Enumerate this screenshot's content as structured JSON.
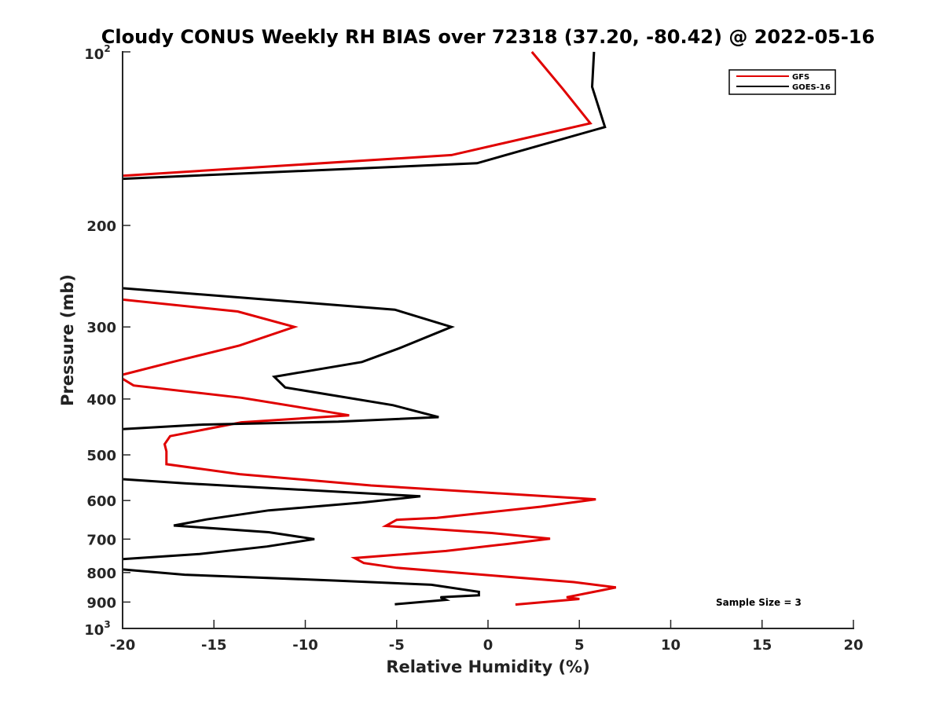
{
  "chart_data": {
    "type": "line",
    "title": "Cloudy CONUS Weekly RH BIAS over 72318 (37.20, -80.42) @ 2022-05-16",
    "xlabel": "Relative Humidity (%)",
    "ylabel": "Pressure (mb)",
    "xlim": [
      -20,
      20
    ],
    "ylim": [
      100,
      1000
    ],
    "yscale": "log",
    "yreversed": true,
    "xticks": [
      -20,
      -15,
      -10,
      -5,
      0,
      5,
      10,
      15,
      20
    ],
    "xtick_labels": [
      "-20",
      "-15",
      "-10",
      "-5",
      "0",
      "5",
      "10",
      "15",
      "20"
    ],
    "yticks_minor": [
      200,
      300,
      400,
      500,
      600,
      700,
      800,
      900
    ],
    "ytick_labels_minor": [
      "200",
      "300",
      "400",
      "500",
      "600",
      "700",
      "800",
      "900"
    ],
    "ytick_top_base": "10",
    "ytick_top_exp": "2",
    "ytick_bottom_base": "10",
    "ytick_bottom_exp": "3",
    "legend_position": "top-right",
    "annotation": "Sample Size = 3",
    "series": [
      {
        "name": "GFS",
        "color": "#e00000",
        "segments": [
          [
            [
              2.4,
              100
            ],
            [
              4.1,
              116
            ],
            [
              5.6,
              133
            ],
            [
              -2.0,
              151
            ],
            [
              -20.0,
              164
            ]
          ],
          [
            [
              -20.0,
              269
            ],
            [
              -13.7,
              282
            ],
            [
              -10.6,
              300
            ],
            [
              -13.6,
              323
            ],
            [
              -17.1,
              344
            ],
            [
              -20.0,
              363
            ]
          ],
          [
            [
              -20.0,
              369
            ],
            [
              -19.4,
              379
            ],
            [
              -13.5,
              398
            ],
            [
              -7.6,
              427
            ],
            [
              -13.5,
              439
            ],
            [
              -17.4,
              464
            ],
            [
              -17.7,
              479
            ],
            [
              -17.6,
              493
            ],
            [
              -17.6,
              519
            ],
            [
              -13.6,
              540
            ],
            [
              -6.4,
              565
            ],
            [
              5.9,
              597
            ],
            [
              2.9,
              615
            ],
            [
              -2.8,
              643
            ],
            [
              -5.0,
              648
            ],
            [
              -5.6,
              664
            ],
            [
              0.2,
              683
            ],
            [
              3.4,
              699
            ],
            [
              1.0,
              714
            ],
            [
              -2.3,
              734
            ],
            [
              -7.3,
              755
            ],
            [
              -6.8,
              770
            ],
            [
              -5.0,
              785
            ],
            [
              4.7,
              831
            ],
            [
              7.0,
              849
            ],
            [
              5.8,
              864
            ],
            [
              4.3,
              883
            ],
            [
              5.0,
              889
            ],
            [
              1.5,
              909
            ]
          ]
        ]
      },
      {
        "name": "GOES-16",
        "color": "#000000",
        "segments": [
          [
            [
              5.8,
              100
            ],
            [
              5.7,
              115
            ],
            [
              6.4,
              135
            ],
            [
              -0.6,
              156
            ],
            [
              -20.0,
              166
            ]
          ],
          [
            [
              -20.0,
              257
            ],
            [
              -5.1,
              280
            ],
            [
              -2.0,
              300
            ],
            [
              -4.9,
              327
            ],
            [
              -6.9,
              345
            ],
            [
              -11.7,
              366
            ],
            [
              -11.1,
              382
            ],
            [
              -5.2,
              410
            ],
            [
              -2.7,
              430
            ],
            [
              -8.2,
              438
            ],
            [
              -15.6,
              443
            ],
            [
              -20.0,
              451
            ]
          ],
          [
            [
              -20.0,
              551
            ],
            [
              -16.6,
              560
            ],
            [
              -13.6,
              567
            ],
            [
              -3.7,
              590
            ],
            [
              -6.9,
              605
            ],
            [
              -12.0,
              624
            ],
            [
              -15.4,
              647
            ],
            [
              -17.2,
              663
            ],
            [
              -12.0,
              681
            ],
            [
              -9.5,
              700
            ],
            [
              -12.1,
              721
            ],
            [
              -15.8,
              743
            ],
            [
              -20.0,
              758
            ]
          ],
          [
            [
              -20.0,
              790
            ],
            [
              -16.6,
              807
            ],
            [
              -8.3,
              826
            ],
            [
              -3.1,
              840
            ],
            [
              -0.5,
              864
            ],
            [
              -0.5,
              876
            ],
            [
              -2.6,
              883
            ],
            [
              -2.3,
              892
            ],
            [
              -5.1,
              908
            ]
          ]
        ]
      }
    ]
  }
}
